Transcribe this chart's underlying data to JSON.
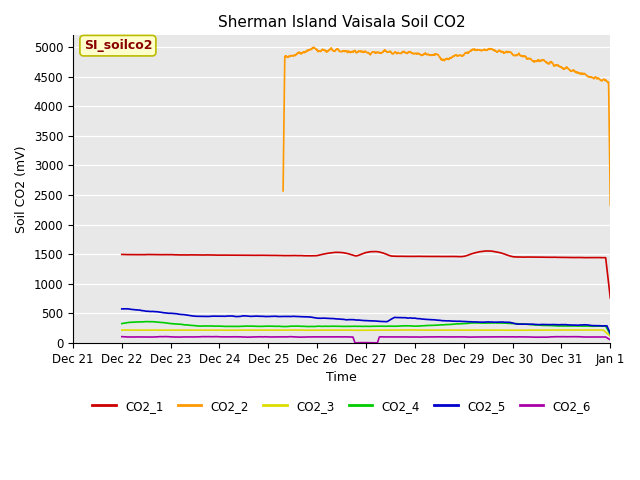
{
  "title": "Sherman Island Vaisala Soil CO2",
  "xlabel": "Time",
  "ylabel": "Soil CO2 (mV)",
  "annotation_text": "SI_soilco2",
  "annotation_bg": "#ffffcc",
  "annotation_border": "#bbbb00",
  "annotation_text_color": "#880000",
  "xlim_days": [
    0,
    11
  ],
  "ylim": [
    0,
    5200
  ],
  "yticks": [
    0,
    500,
    1000,
    1500,
    2000,
    2500,
    3000,
    3500,
    4000,
    4500,
    5000
  ],
  "xtick_labels": [
    "Dec 21",
    "Dec 22",
    "Dec 23",
    "Dec 24",
    "Dec 25",
    "Dec 26",
    "Dec 27",
    "Dec 28",
    "Dec 29",
    "Dec 30",
    "Dec 31",
    "Jan 1"
  ],
  "bg_color": "#e8e8e8",
  "fig_bg": "#ffffff",
  "series": {
    "CO2_1": {
      "color": "#cc0000",
      "lw": 1.2
    },
    "CO2_2": {
      "color": "#ff9900",
      "lw": 1.2
    },
    "CO2_3": {
      "color": "#dddd00",
      "lw": 1.2
    },
    "CO2_4": {
      "color": "#00cc00",
      "lw": 1.2
    },
    "CO2_5": {
      "color": "#0000cc",
      "lw": 1.2
    },
    "CO2_6": {
      "color": "#aa00aa",
      "lw": 1.2
    }
  },
  "legend_series": [
    "CO2_1",
    "CO2_2",
    "CO2_3",
    "CO2_4",
    "CO2_5",
    "CO2_6"
  ]
}
